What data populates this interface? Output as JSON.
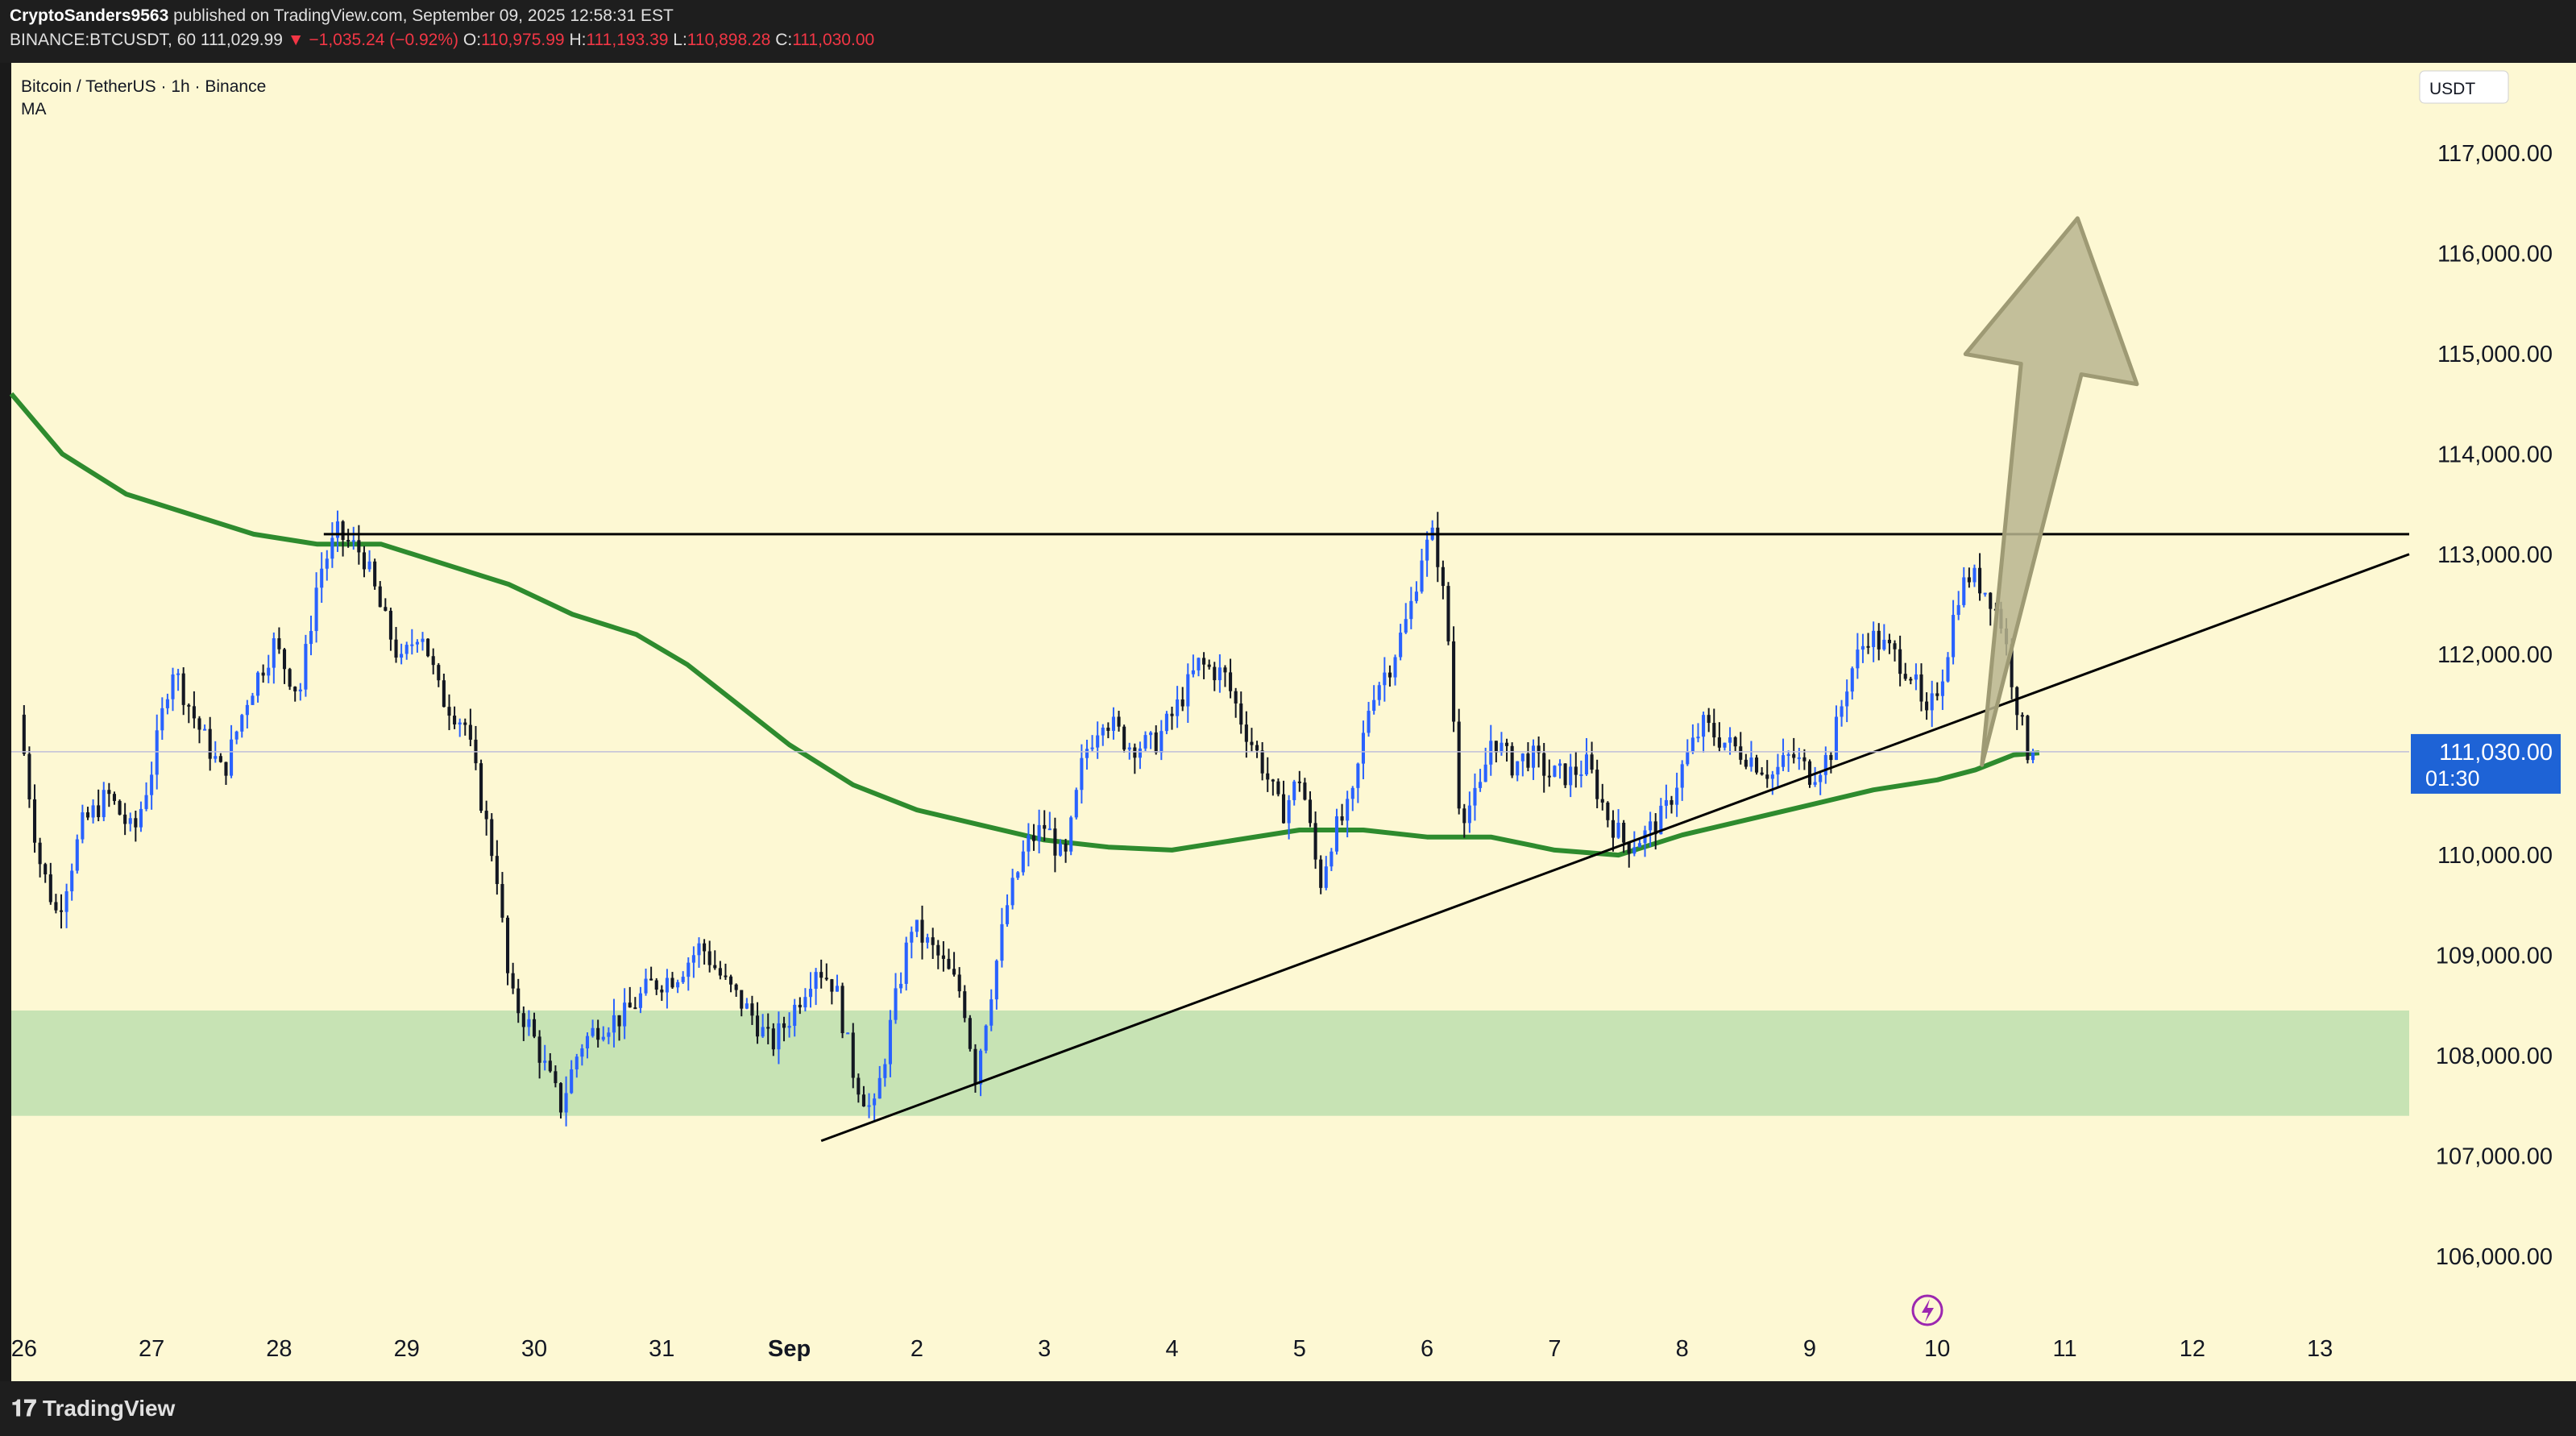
{
  "header": {
    "author": "CryptoSanders9563",
    "published": "published on TradingView.com, September 09, 2025 12:58:31 EST",
    "symbol_line": "BINANCE:BTCUSDT, 60",
    "last": "111,029.99",
    "change_arrow": "▼",
    "change": "−1,035.24 (−0.92%)",
    "open_label": "O:",
    "open": "110,975.99",
    "high_label": "H:",
    "high": "111,193.39",
    "low_label": "L:",
    "low": "110,898.28",
    "close_label": "C:",
    "close": "111,030.00"
  },
  "legend": {
    "title": "Bitcoin / TetherUS · 1h · Binance",
    "indicator": "MA"
  },
  "footer": {
    "brand": "TradingView"
  },
  "colors": {
    "background": "#fdf8d3",
    "up": "#2962ff",
    "down": "#131722",
    "ma": "#2e8b2e",
    "zone": "#c7e3b4",
    "arrow_fill": "#b9b58f",
    "arrow_stroke": "#9e9a74",
    "price_label": "#1e63d6"
  },
  "chart_data": {
    "type": "candlestick",
    "currency": "USDT",
    "x_ticks": [
      "26",
      "27",
      "28",
      "29",
      "30",
      "31",
      "Sep",
      "2",
      "3",
      "4",
      "5",
      "6",
      "7",
      "8",
      "9",
      "10",
      "11",
      "12",
      "13"
    ],
    "x_tick_day": [
      26,
      27,
      28,
      29,
      30,
      31,
      32,
      33,
      34,
      35,
      36,
      37,
      38,
      39,
      40,
      41,
      42,
      43,
      44
    ],
    "y_ticks": [
      "106,000.00",
      "107,000.00",
      "108,000.00",
      "109,000.00",
      "110,000.00",
      "111,000.00",
      "112,000.00",
      "113,000.00",
      "114,000.00",
      "115,000.00",
      "116,000.00",
      "117,000.00"
    ],
    "y_tick_values": [
      106000,
      107000,
      108000,
      109000,
      110000,
      111000,
      112000,
      113000,
      114000,
      115000,
      116000,
      117000
    ],
    "xlim": [
      25.9,
      44.7
    ],
    "ylim": [
      105300,
      117900
    ],
    "current_price": {
      "value": 111030,
      "label": "111,030.00",
      "countdown": "01:30"
    },
    "price_path": [
      [
        26.0,
        111400
      ],
      [
        26.15,
        110000
      ],
      [
        26.3,
        109400
      ],
      [
        26.5,
        110300
      ],
      [
        26.7,
        110600
      ],
      [
        26.9,
        110200
      ],
      [
        27.05,
        110900
      ],
      [
        27.2,
        111900
      ],
      [
        27.4,
        111300
      ],
      [
        27.6,
        110800
      ],
      [
        27.8,
        111600
      ],
      [
        28.0,
        112100
      ],
      [
        28.2,
        111600
      ],
      [
        28.35,
        112800
      ],
      [
        28.5,
        113200
      ],
      [
        28.7,
        113000
      ],
      [
        28.85,
        112400
      ],
      [
        29.0,
        111900
      ],
      [
        29.15,
        112300
      ],
      [
        29.3,
        111600
      ],
      [
        29.5,
        111300
      ],
      [
        29.65,
        110400
      ],
      [
        29.75,
        109800
      ],
      [
        29.85,
        108600
      ],
      [
        30.0,
        108300
      ],
      [
        30.15,
        107800
      ],
      [
        30.25,
        107500
      ],
      [
        30.4,
        108100
      ],
      [
        30.55,
        108300
      ],
      [
        30.75,
        108400
      ],
      [
        30.95,
        108700
      ],
      [
        31.15,
        108800
      ],
      [
        31.35,
        109100
      ],
      [
        31.55,
        108700
      ],
      [
        31.75,
        108400
      ],
      [
        31.9,
        108100
      ],
      [
        32.05,
        108400
      ],
      [
        32.25,
        108900
      ],
      [
        32.4,
        108700
      ],
      [
        32.55,
        107800
      ],
      [
        32.7,
        107400
      ],
      [
        32.85,
        108400
      ],
      [
        33.0,
        109300
      ],
      [
        33.2,
        109000
      ],
      [
        33.4,
        108600
      ],
      [
        33.5,
        107800
      ],
      [
        33.6,
        108500
      ],
      [
        33.75,
        109500
      ],
      [
        33.9,
        110100
      ],
      [
        34.05,
        110300
      ],
      [
        34.2,
        109900
      ],
      [
        34.35,
        111000
      ],
      [
        34.5,
        111400
      ],
      [
        34.7,
        111100
      ],
      [
        34.9,
        111100
      ],
      [
        35.05,
        111400
      ],
      [
        35.25,
        111900
      ],
      [
        35.45,
        111800
      ],
      [
        35.6,
        111300
      ],
      [
        35.75,
        110900
      ],
      [
        35.9,
        110400
      ],
      [
        36.05,
        110800
      ],
      [
        36.2,
        109700
      ],
      [
        36.3,
        110200
      ],
      [
        36.45,
        110500
      ],
      [
        36.6,
        111600
      ],
      [
        36.75,
        111900
      ],
      [
        36.9,
        112400
      ],
      [
        37.0,
        113000
      ],
      [
        37.1,
        113200
      ],
      [
        37.2,
        112300
      ],
      [
        37.3,
        110400
      ],
      [
        37.45,
        110600
      ],
      [
        37.55,
        111200
      ],
      [
        37.7,
        110900
      ],
      [
        37.85,
        111000
      ],
      [
        38.0,
        110800
      ],
      [
        38.15,
        110800
      ],
      [
        38.3,
        110900
      ],
      [
        38.45,
        110400
      ],
      [
        38.6,
        110100
      ],
      [
        38.75,
        110200
      ],
      [
        38.9,
        110400
      ],
      [
        39.05,
        110900
      ],
      [
        39.2,
        111300
      ],
      [
        39.4,
        111100
      ],
      [
        39.55,
        111000
      ],
      [
        39.75,
        110800
      ],
      [
        39.9,
        111000
      ],
      [
        40.05,
        110800
      ],
      [
        40.2,
        111000
      ],
      [
        40.35,
        111800
      ],
      [
        40.5,
        112200
      ],
      [
        40.7,
        112000
      ],
      [
        40.85,
        111800
      ],
      [
        40.95,
        111300
      ],
      [
        41.1,
        111900
      ],
      [
        41.2,
        112600
      ],
      [
        41.3,
        112800
      ],
      [
        41.45,
        112600
      ],
      [
        41.55,
        112300
      ],
      [
        41.65,
        111600
      ],
      [
        41.75,
        111030
      ]
    ],
    "ma_path": [
      [
        25.9,
        114600
      ],
      [
        26.3,
        114000
      ],
      [
        26.8,
        113600
      ],
      [
        27.3,
        113400
      ],
      [
        27.8,
        113200
      ],
      [
        28.3,
        113100
      ],
      [
        28.8,
        113100
      ],
      [
        29.3,
        112900
      ],
      [
        29.8,
        112700
      ],
      [
        30.3,
        112400
      ],
      [
        30.8,
        112200
      ],
      [
        31.2,
        111900
      ],
      [
        31.6,
        111500
      ],
      [
        32.0,
        111100
      ],
      [
        32.5,
        110700
      ],
      [
        33.0,
        110450
      ],
      [
        33.5,
        110300
      ],
      [
        34.0,
        110150
      ],
      [
        34.5,
        110080
      ],
      [
        35.0,
        110050
      ],
      [
        35.5,
        110150
      ],
      [
        36.0,
        110250
      ],
      [
        36.5,
        110250
      ],
      [
        37.0,
        110180
      ],
      [
        37.5,
        110180
      ],
      [
        38.0,
        110050
      ],
      [
        38.5,
        110000
      ],
      [
        39.0,
        110200
      ],
      [
        39.5,
        110350
      ],
      [
        40.0,
        110500
      ],
      [
        40.5,
        110650
      ],
      [
        41.0,
        110750
      ],
      [
        41.3,
        110850
      ],
      [
        41.6,
        111000
      ],
      [
        41.8,
        111020
      ]
    ],
    "annotations": {
      "resistance": {
        "price": 113200,
        "x_start": 28.35,
        "x_end": 44.7
      },
      "trendline": {
        "start": [
          32.25,
          107150
        ],
        "end": [
          44.7,
          113000
        ]
      },
      "support_zone": {
        "low": 107400,
        "high": 108450,
        "x_start": 25.9,
        "x_end": 44.7
      },
      "arrow": {
        "tail": [
          41.35,
          110900
        ],
        "tip": [
          42.1,
          116350
        ]
      }
    },
    "gridlines": false
  }
}
